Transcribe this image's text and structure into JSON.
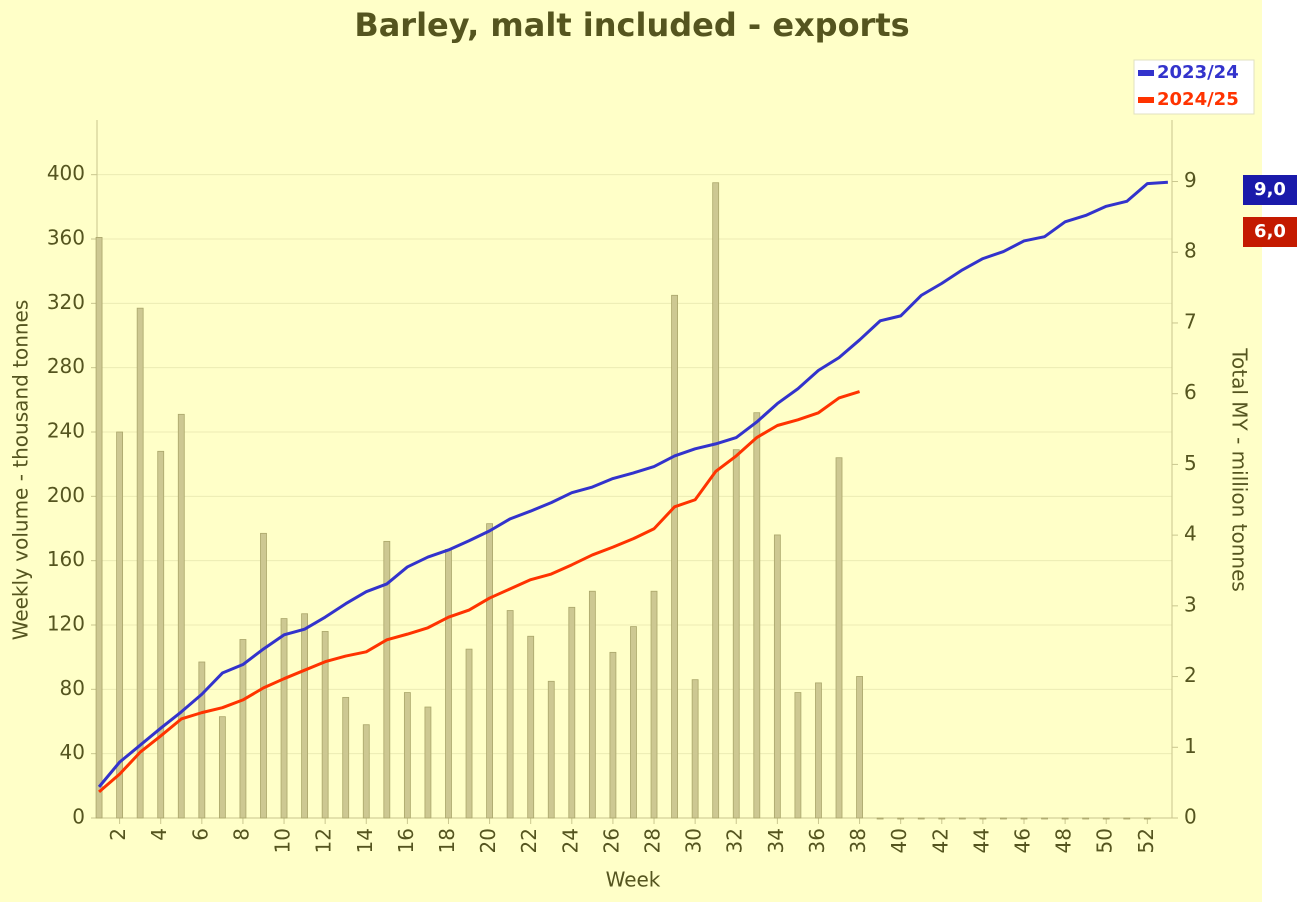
{
  "chart_data": {
    "type": "bar_line",
    "title": "Barley, malt included - exports",
    "xlabel": "Week",
    "ylabel": "Weekly volume - thousand tonnes",
    "y2label": "Total MY - million tonnes",
    "x": [
      1,
      2,
      3,
      4,
      5,
      6,
      7,
      8,
      9,
      10,
      11,
      12,
      13,
      14,
      15,
      16,
      17,
      18,
      19,
      20,
      21,
      22,
      23,
      24,
      25,
      26,
      27,
      28,
      29,
      30,
      31,
      32,
      33,
      34,
      35,
      36,
      37,
      38,
      39,
      40,
      41,
      42,
      43,
      44,
      45,
      46,
      47,
      48,
      49,
      50,
      51,
      52,
      53
    ],
    "xlim": [
      0.9,
      53.2
    ],
    "xticks": [
      2,
      4,
      6,
      8,
      10,
      12,
      14,
      16,
      18,
      20,
      22,
      24,
      26,
      28,
      30,
      32,
      34,
      36,
      38,
      40,
      42,
      44,
      46,
      48,
      50,
      52
    ],
    "ylim": [
      0,
      434
    ],
    "yticks": [
      0,
      40,
      80,
      120,
      160,
      200,
      240,
      280,
      320,
      360,
      400
    ],
    "y2lim": [
      0,
      9.87
    ],
    "y2ticks": [
      0,
      1,
      2,
      3,
      4,
      5,
      6,
      7,
      8,
      9
    ],
    "grid": true,
    "legend": "top-right",
    "bars": {
      "color": "#cdc892",
      "values": [
        361,
        240,
        317,
        228,
        251,
        97,
        63,
        111,
        177,
        124,
        127,
        116,
        75,
        58,
        172,
        78,
        69,
        167,
        105,
        183,
        129,
        113,
        85,
        131,
        141,
        103,
        119,
        141,
        325,
        86,
        395,
        229,
        252,
        176,
        78,
        84,
        224,
        88,
        0,
        0,
        0,
        0,
        0,
        0,
        0,
        0,
        0,
        0,
        0,
        0,
        0,
        0,
        null
      ]
    },
    "series": [
      {
        "name": "2023/24",
        "color": "#3333cc",
        "axis": "y2",
        "end_label": "9,0",
        "end_color": "#1a1aaa",
        "values": [
          0.44,
          0.79,
          1.03,
          1.27,
          1.5,
          1.75,
          2.05,
          2.17,
          2.39,
          2.59,
          2.67,
          2.84,
          3.03,
          3.2,
          3.31,
          3.55,
          3.69,
          3.79,
          3.92,
          4.06,
          4.23,
          4.34,
          4.46,
          4.6,
          4.68,
          4.8,
          4.88,
          4.97,
          5.12,
          5.22,
          5.29,
          5.38,
          5.6,
          5.86,
          6.07,
          6.33,
          6.51,
          6.76,
          7.03,
          7.1,
          7.39,
          7.56,
          7.75,
          7.91,
          8.01,
          8.16,
          8.22,
          8.43,
          8.52,
          8.65,
          8.72,
          8.97,
          8.99
        ]
      },
      {
        "name": "2024/25",
        "color": "#ff3300",
        "axis": "y2",
        "end_label": "6,0",
        "end_color": "#c41a00",
        "values": [
          0.37,
          0.62,
          0.93,
          1.16,
          1.4,
          1.49,
          1.56,
          1.67,
          1.84,
          1.97,
          2.09,
          2.21,
          2.29,
          2.35,
          2.52,
          2.6,
          2.69,
          2.84,
          2.94,
          3.11,
          3.24,
          3.37,
          3.45,
          3.58,
          3.72,
          3.83,
          3.95,
          4.09,
          4.4,
          4.5,
          4.9,
          5.12,
          5.38,
          5.55,
          5.63,
          5.73,
          5.94,
          6.03,
          null,
          null,
          null,
          null,
          null,
          null,
          null,
          null,
          null,
          null,
          null,
          null,
          null,
          null,
          null
        ]
      }
    ]
  }
}
